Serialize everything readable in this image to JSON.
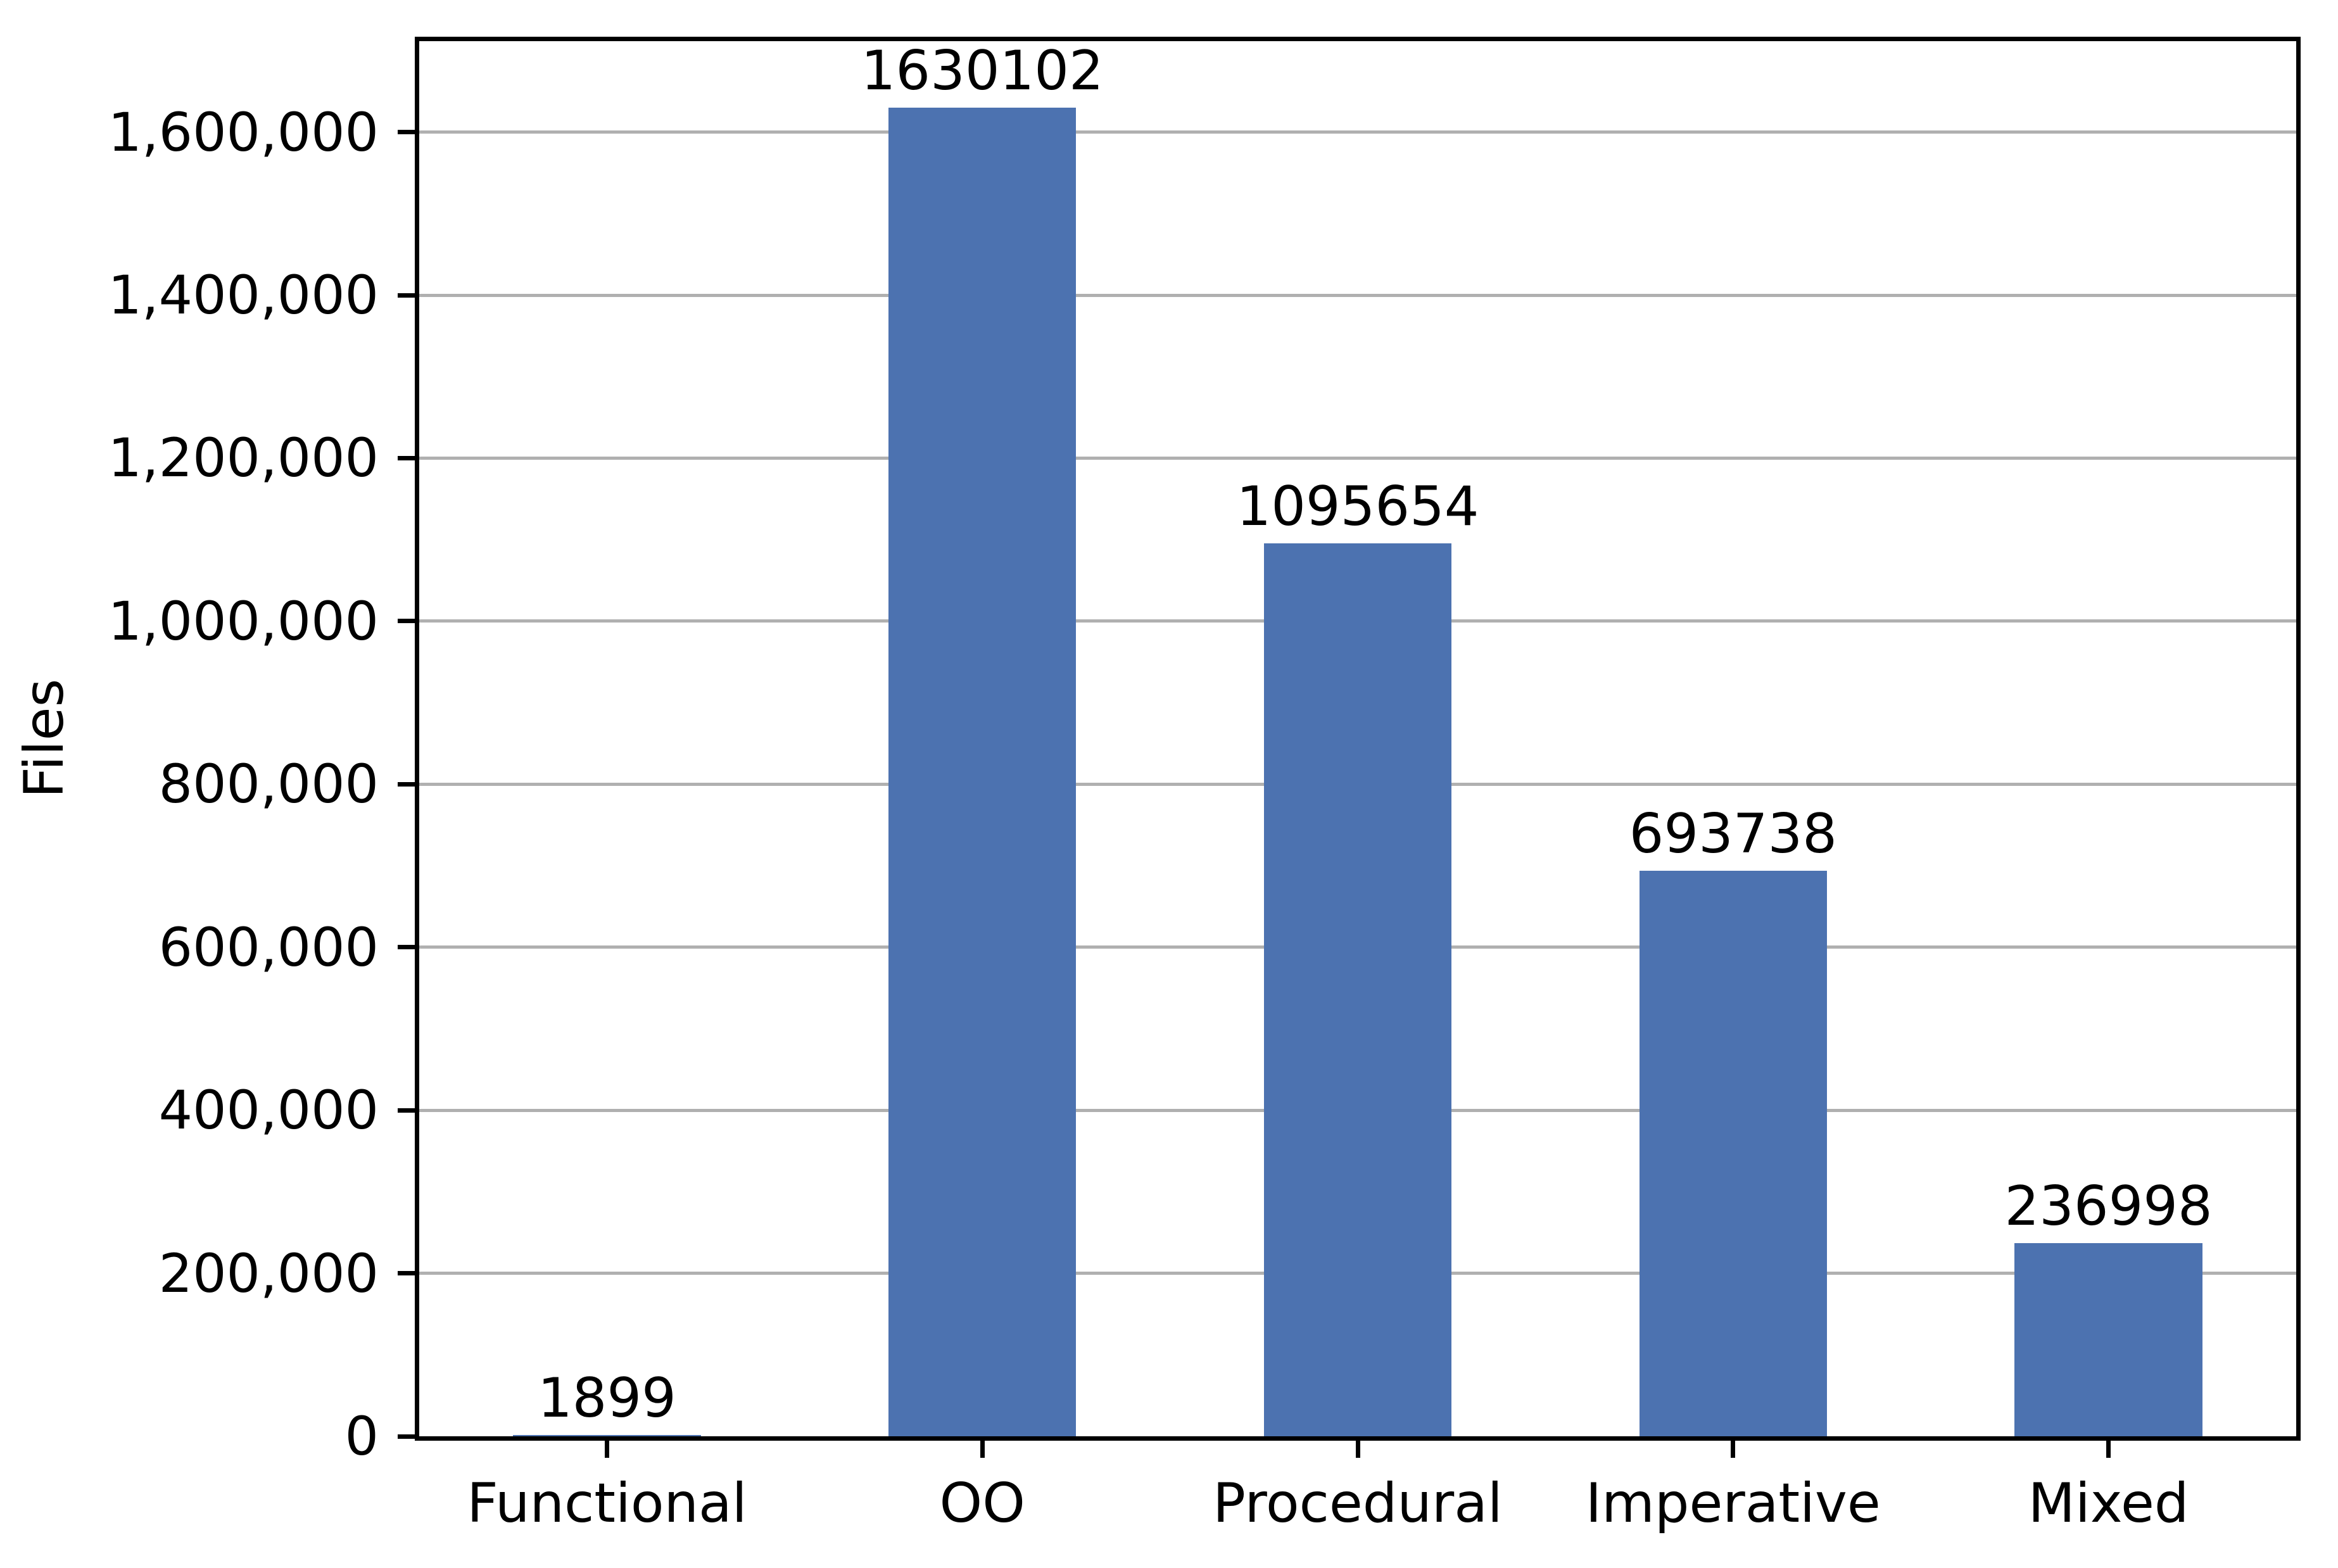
{
  "chart_data": {
    "type": "bar",
    "categories": [
      "Functional",
      "OO",
      "Procedural",
      "Imperative",
      "Mixed"
    ],
    "values": [
      1899,
      1630102,
      1095654,
      693738,
      236998
    ],
    "bar_labels": [
      "1899",
      "1630102",
      "1095654",
      "693738",
      "236998"
    ],
    "title": "",
    "xlabel": "",
    "ylabel": "Files",
    "ylim": [
      0,
      1711607
    ],
    "yticks": [
      0,
      200000,
      400000,
      600000,
      800000,
      1000000,
      1200000,
      1400000,
      1600000
    ],
    "ytick_labels": [
      "0",
      "200,000",
      "400,000",
      "600,000",
      "800,000",
      "1,000,000",
      "1,200,000",
      "1,400,000",
      "1,600,000"
    ],
    "grid": "horizontal",
    "legend": "none",
    "bar_width_fraction": 0.5,
    "colors": {
      "bar": "#4C72B0",
      "grid": "#b0b0b0",
      "axis": "#000000",
      "text": "#000000",
      "background": "#ffffff"
    }
  }
}
